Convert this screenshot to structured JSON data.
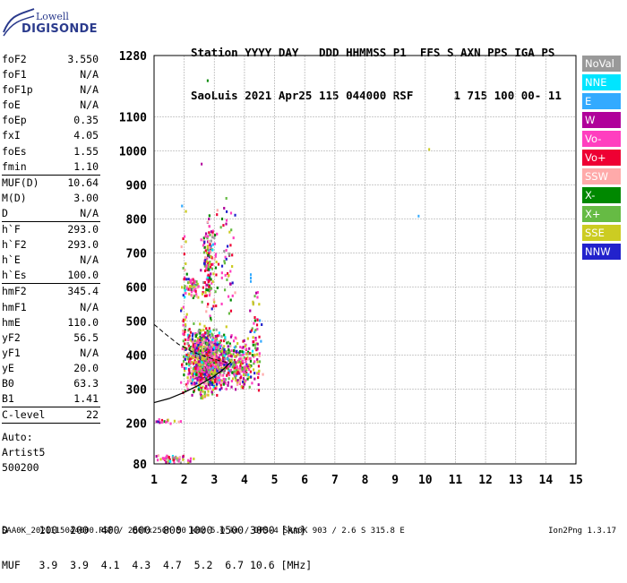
{
  "logo": {
    "top": "Lowell",
    "bottom": "DIGISONDE"
  },
  "header": {
    "line1": "Station YYYY DAY   DDD HHMMSS P1  FFS S AXN PPS IGA PS",
    "line2": "SaoLuis 2021 Apr25 115 044000 RSF      1 715 100 00- 11"
  },
  "params": [
    [
      {
        "label": "foF2",
        "value": "3.550"
      },
      {
        "label": "foF1",
        "value": "N/A"
      },
      {
        "label": "foF1p",
        "value": "N/A"
      },
      {
        "label": "foE",
        "value": "N/A"
      },
      {
        "label": "foEp",
        "value": "0.35"
      },
      {
        "label": "fxI",
        "value": "4.05"
      },
      {
        "label": "foEs",
        "value": "1.55"
      },
      {
        "label": "fmin",
        "value": "1.10"
      }
    ],
    [
      {
        "label": "MUF(D)",
        "value": "10.64"
      },
      {
        "label": "M(D)",
        "value": "3.00"
      },
      {
        "label": "D",
        "value": "N/A"
      }
    ],
    [
      {
        "label": "h`F",
        "value": "293.0"
      },
      {
        "label": "h`F2",
        "value": "293.0"
      },
      {
        "label": "h`E",
        "value": "N/A"
      },
      {
        "label": "h`Es",
        "value": "100.0"
      }
    ],
    [
      {
        "label": "hmF2",
        "value": "345.4"
      },
      {
        "label": "hmF1",
        "value": "N/A"
      },
      {
        "label": "hmE",
        "value": "110.0"
      },
      {
        "label": "yF2",
        "value": "56.5"
      },
      {
        "label": "yF1",
        "value": "N/A"
      },
      {
        "label": "yE",
        "value": "20.0"
      },
      {
        "label": "B0",
        "value": "63.3"
      },
      {
        "label": "B1",
        "value": "1.41"
      }
    ],
    [
      {
        "label": "C-level",
        "value": "22"
      }
    ]
  ],
  "auto": {
    "line1": "Auto:",
    "line2": "Artist5",
    "line3": "500200"
  },
  "legend": [
    {
      "label": "NoVal",
      "color": "#999999"
    },
    {
      "label": "NNE",
      "color": "#00e5ff"
    },
    {
      "label": "E",
      "color": "#33aaff"
    },
    {
      "label": "W",
      "color": "#b0009a"
    },
    {
      "label": "Vo-",
      "color": "#ff3fbf"
    },
    {
      "label": "Vo+",
      "color": "#ee0033"
    },
    {
      "label": "SSW",
      "color": "#ffaaaa"
    },
    {
      "label": "X-",
      "color": "#008800"
    },
    {
      "label": "X+",
      "color": "#66bb44"
    },
    {
      "label": "SSE",
      "color": "#cccc22"
    },
    {
      "label": "NNW",
      "color": "#2222cc"
    }
  ],
  "bottom": {
    "d_row": "D     100  200  400  600  800 1000 1500 3000 [km]",
    "muf_row": "MUF   3.9  3.9  4.1  4.3  4.7  5.2  6.7 10.6 [MHz]"
  },
  "footer": {
    "left": "SAA0K_2021115044000.RSF / 280fx256h 50 kHz 5.0 km / DPS-4 SAA0K 903 / 2.6 S 315.8 E",
    "right": "Ion2Png 1.3.17"
  },
  "chart_data": {
    "type": "scatter",
    "x_ticks": [
      "1",
      "2",
      "3",
      "4",
      "5",
      "6",
      "7",
      "8",
      "9",
      "10",
      "11",
      "12",
      "13",
      "14",
      "15"
    ],
    "y_ticks": [
      "80",
      "200",
      "300",
      "400",
      "500",
      "600",
      "700",
      "800",
      "900",
      "1000",
      "1100",
      "1280"
    ],
    "xlim": [
      1,
      15
    ],
    "ylim": [
      80,
      1280
    ],
    "grid": true,
    "legend_position": "right",
    "clusters": [
      {
        "x": [
          1.85,
          3.2
        ],
        "y": [
          270,
          500
        ],
        "n": 650
      },
      {
        "x": [
          2.3,
          3.6
        ],
        "y": [
          300,
          480
        ],
        "n": 450
      },
      {
        "x": [
          3.2,
          4.6
        ],
        "y": [
          290,
          460
        ],
        "n": 250
      },
      {
        "x": [
          2.5,
          3.1
        ],
        "y": [
          500,
          830
        ],
        "n": 160
      },
      {
        "x": [
          1.9,
          2.5
        ],
        "y": [
          560,
          640
        ],
        "n": 50
      },
      {
        "x": [
          1.85,
          2.1
        ],
        "y": [
          320,
          870
        ],
        "n": 40
      },
      {
        "x": [
          3.0,
          3.8
        ],
        "y": [
          450,
          880
        ],
        "n": 50
      },
      {
        "x": [
          1.0,
          2.3
        ],
        "y": [
          85,
          110
        ],
        "n": 50
      },
      {
        "x": [
          1.0,
          2.0
        ],
        "y": [
          200,
          215
        ],
        "n": 15
      },
      {
        "x": [
          4.1,
          4.6
        ],
        "y": [
          390,
          600
        ],
        "n": 30
      }
    ],
    "points": [
      [
        4.18,
        640,
        2
      ],
      [
        4.18,
        630,
        2
      ],
      [
        4.18,
        620,
        2
      ],
      [
        9.75,
        812,
        2
      ],
      [
        10.1,
        1008,
        9
      ],
      [
        2.75,
        1210,
        7
      ],
      [
        2.55,
        965,
        3
      ]
    ],
    "profile_curve": {
      "x": [
        1.0,
        1.5,
        2.0,
        2.5,
        3.0,
        3.3,
        3.55
      ],
      "y": [
        260,
        272,
        290,
        312,
        338,
        358,
        380
      ]
    },
    "profile_dashed": {
      "x": [
        1.0,
        1.4,
        1.8,
        2.3,
        2.9,
        3.4
      ],
      "y": [
        490,
        460,
        432,
        408,
        390,
        378
      ]
    }
  }
}
